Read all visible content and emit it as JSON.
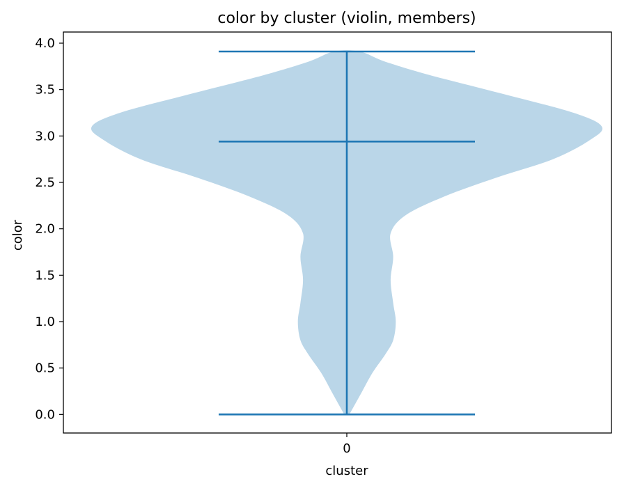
{
  "chart_data": {
    "type": "violin",
    "title": "color by cluster (violin, members)",
    "xlabel": "cluster",
    "ylabel": "color",
    "categories": [
      "0"
    ],
    "ylim": [
      -0.2,
      4.12
    ],
    "yticks": [
      "0.0",
      "0.5",
      "1.0",
      "1.5",
      "2.0",
      "2.5",
      "3.0",
      "3.5",
      "4.0"
    ],
    "grid": false,
    "summary": {
      "min": 0.0,
      "median": 2.94,
      "max": 3.91
    },
    "density_profile": [
      {
        "y": 0.0,
        "width": 0.01
      },
      {
        "y": 0.1,
        "width": 0.03
      },
      {
        "y": 0.25,
        "width": 0.06
      },
      {
        "y": 0.45,
        "width": 0.1
      },
      {
        "y": 0.65,
        "width": 0.15
      },
      {
        "y": 0.8,
        "width": 0.18
      },
      {
        "y": 1.0,
        "width": 0.19
      },
      {
        "y": 1.2,
        "width": 0.18
      },
      {
        "y": 1.45,
        "width": 0.17
      },
      {
        "y": 1.7,
        "width": 0.18
      },
      {
        "y": 1.95,
        "width": 0.17
      },
      {
        "y": 2.15,
        "width": 0.23
      },
      {
        "y": 2.35,
        "width": 0.38
      },
      {
        "y": 2.55,
        "width": 0.58
      },
      {
        "y": 2.75,
        "width": 0.8
      },
      {
        "y": 2.95,
        "width": 0.94
      },
      {
        "y": 3.1,
        "width": 0.99
      },
      {
        "y": 3.25,
        "width": 0.88
      },
      {
        "y": 3.45,
        "width": 0.61
      },
      {
        "y": 3.65,
        "width": 0.33
      },
      {
        "y": 3.8,
        "width": 0.15
      },
      {
        "y": 3.91,
        "width": 0.05
      }
    ],
    "colors": {
      "body": "#bad6e8",
      "lines": "#1f77b4"
    }
  }
}
